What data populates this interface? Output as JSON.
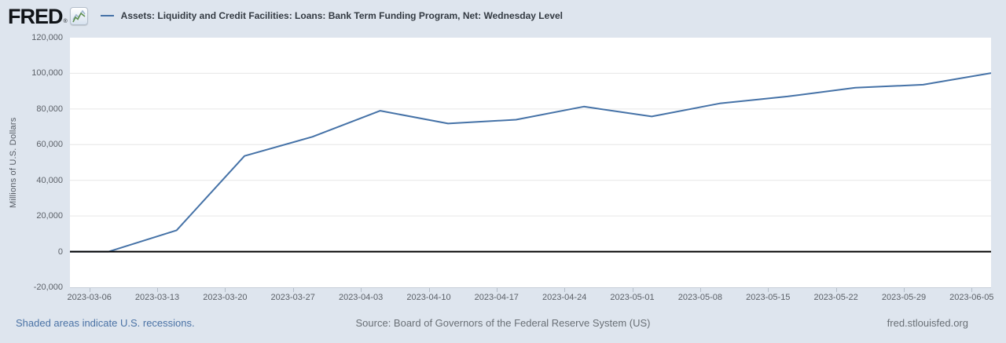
{
  "header": {
    "logo_text": "FRED",
    "registered_mark": "®",
    "series_title": "Assets: Liquidity and Credit Facilities: Loans: Bank Term Funding Program, Net: Wednesday Level"
  },
  "chart_data": {
    "type": "line",
    "title": "Assets: Liquidity and Credit Facilities: Loans: Bank Term Funding Program, Net: Wednesday Level",
    "ylabel": "Millions of U.S. Dollars",
    "ylim": [
      -20000,
      120000
    ],
    "x_domain": [
      "2023-03-04",
      "2023-06-07"
    ],
    "grid": true,
    "legend_position": "top",
    "background_color": "#dee5ee",
    "plot_background_color": "#ffffff",
    "gridline_color": "#e6e6e6",
    "zero_line_color": "#000000",
    "yticks": [
      {
        "value": 120000,
        "label": "120,000"
      },
      {
        "value": 100000,
        "label": "100,000"
      },
      {
        "value": 80000,
        "label": "80,000"
      },
      {
        "value": 60000,
        "label": "60,000"
      },
      {
        "value": 40000,
        "label": "40,000"
      },
      {
        "value": 20000,
        "label": "20,000"
      },
      {
        "value": 0,
        "label": "0"
      },
      {
        "value": -20000,
        "label": "-20,000"
      }
    ],
    "xticks": [
      "2023-03-06",
      "2023-03-13",
      "2023-03-20",
      "2023-03-27",
      "2023-04-03",
      "2023-04-10",
      "2023-04-17",
      "2023-04-24",
      "2023-05-01",
      "2023-05-08",
      "2023-05-15",
      "2023-05-22",
      "2023-05-29",
      "2023-06-05"
    ],
    "series": [
      {
        "name": "Assets: Liquidity and Credit Facilities: Loans: Bank Term Funding Program, Net: Wednesday Level",
        "color": "#4572a7",
        "points": [
          {
            "date": "2023-03-01",
            "value": 0
          },
          {
            "date": "2023-03-08",
            "value": 0
          },
          {
            "date": "2023-03-15",
            "value": 11943
          },
          {
            "date": "2023-03-22",
            "value": 53669
          },
          {
            "date": "2023-03-29",
            "value": 64403
          },
          {
            "date": "2023-04-05",
            "value": 79021
          },
          {
            "date": "2023-04-12",
            "value": 71837
          },
          {
            "date": "2023-04-19",
            "value": 73982
          },
          {
            "date": "2023-04-26",
            "value": 81327
          },
          {
            "date": "2023-05-03",
            "value": 75778
          },
          {
            "date": "2023-05-10",
            "value": 83101
          },
          {
            "date": "2023-05-17",
            "value": 87006
          },
          {
            "date": "2023-05-24",
            "value": 91907
          },
          {
            "date": "2023-05-31",
            "value": 93615
          },
          {
            "date": "2023-06-07",
            "value": 100161
          }
        ]
      }
    ]
  },
  "footer": {
    "recession_note": "Shaded areas indicate U.S. recessions.",
    "source": "Source: Board of Governors of the Federal Reserve System (US)",
    "site": "fred.stlouisfed.org"
  }
}
